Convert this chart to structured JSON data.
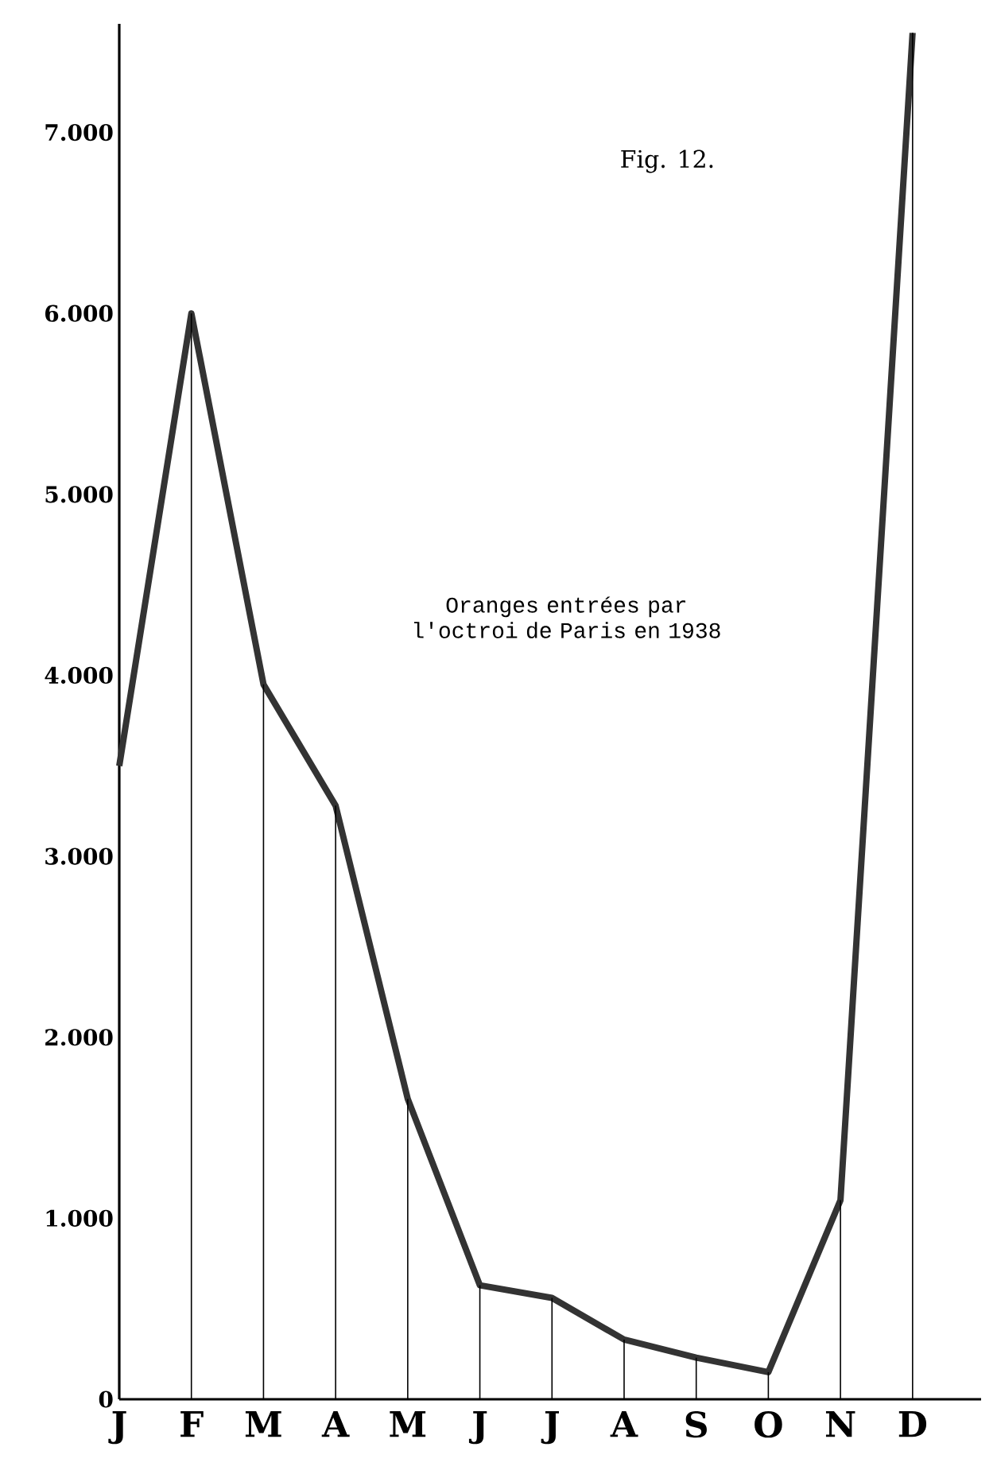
{
  "chart_data": {
    "type": "line",
    "title": "Oranges entrées par l'octroi de Paris en 1938",
    "annotations": [
      "Fig. 12."
    ],
    "categories": [
      "J",
      "F",
      "M",
      "A",
      "M",
      "J",
      "J",
      "A",
      "S",
      "O",
      "N",
      "D"
    ],
    "series": [
      {
        "color": "#333333",
        "values": [
          3500,
          6000,
          3950,
          3280,
          1660,
          630,
          560,
          330,
          230,
          150,
          1100,
          7550
        ]
      },
      {
        "type": "bar",
        "color": "#000000",
        "values": [
          3500,
          6000,
          3950,
          3280,
          1660,
          630,
          560,
          330,
          230,
          150,
          1100,
          7550
        ]
      }
    ],
    "ylim": [
      0,
      7600
    ],
    "yticks": [
      0,
      {
        "value": 1000,
        "label": "1.000"
      },
      {
        "value": 2000,
        "label": "2.000"
      },
      {
        "value": 3000,
        "label": "3.000"
      },
      {
        "value": 4000,
        "label": "4.000"
      },
      {
        "value": 5000,
        "label": "5.000"
      },
      {
        "value": 6000,
        "label": "6.000"
      },
      {
        "value": 7000,
        "label": "7.000"
      }
    ],
    "marker": "none",
    "line_style": "solid",
    "grid": false,
    "legend": false
  }
}
